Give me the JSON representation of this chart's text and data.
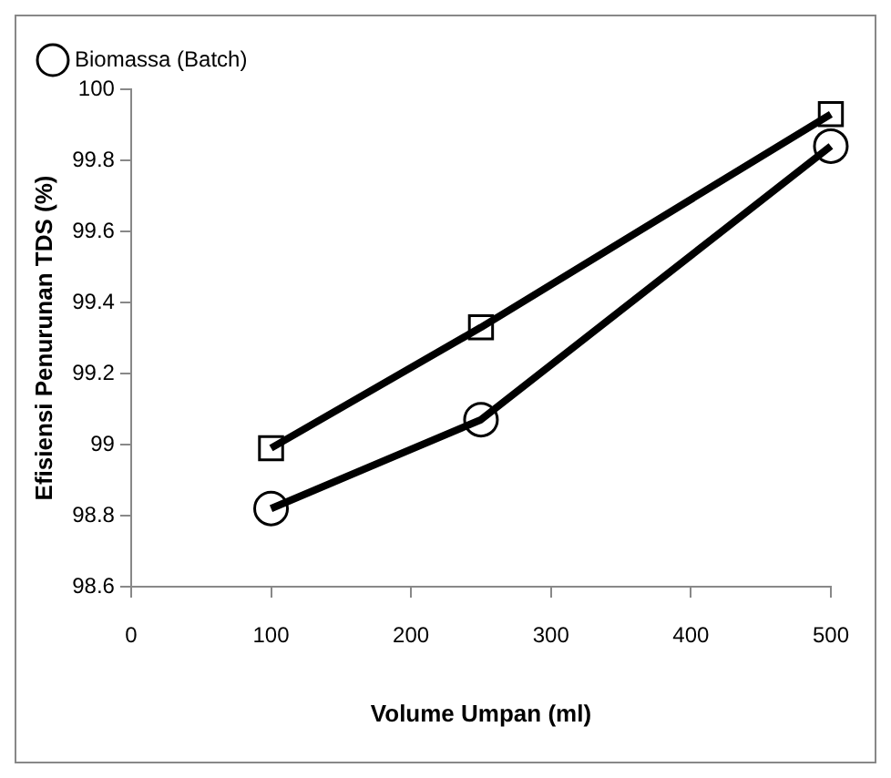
{
  "chart_data": {
    "type": "line",
    "xlabel": "Volume Umpan (ml)",
    "ylabel": "Efisiensi Penurunan TDS (%)",
    "xlim": [
      0,
      500
    ],
    "xticks": [
      0,
      100,
      200,
      300,
      400,
      500
    ],
    "ylim": [
      98.6,
      100
    ],
    "yticks": [
      98.6,
      98.8,
      99,
      99.2,
      99.4,
      99.6,
      99.8,
      100
    ],
    "grid": false,
    "legend": "top left",
    "series": [
      {
        "color": "#000000",
        "marker": "square",
        "x": [
          100,
          250,
          500
        ],
        "values": [
          98.99,
          99.33,
          99.93
        ]
      },
      {
        "name": "Biomassa (Batch)",
        "color": "#000000",
        "marker": "circle",
        "x": [
          100,
          250,
          500
        ],
        "values": [
          98.82,
          99.07,
          99.84
        ]
      }
    ]
  }
}
